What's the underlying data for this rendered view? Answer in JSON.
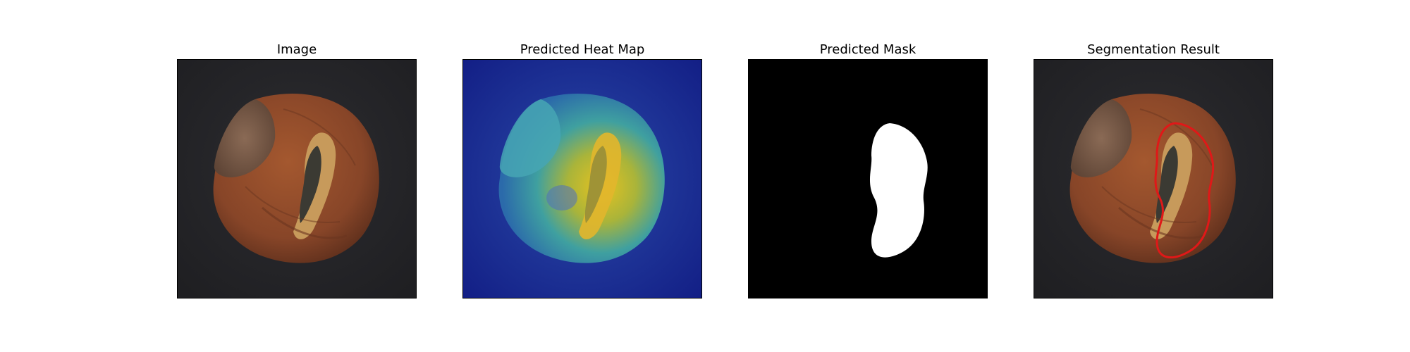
{
  "panels": [
    {
      "title": "Image"
    },
    {
      "title": "Predicted Heat Map"
    },
    {
      "title": "Predicted Mask"
    },
    {
      "title": "Segmentation Result"
    }
  ],
  "colors": {
    "background": "#26262a",
    "hazelnut_shell": "#8a4a2a",
    "crack": "#c89a5a",
    "mask_fill": "#ffffff",
    "mask_background": "#000000",
    "contour": "#e01818",
    "heatmap_low": "#1c2a8c",
    "heatmap_high": "#e8b81c"
  }
}
